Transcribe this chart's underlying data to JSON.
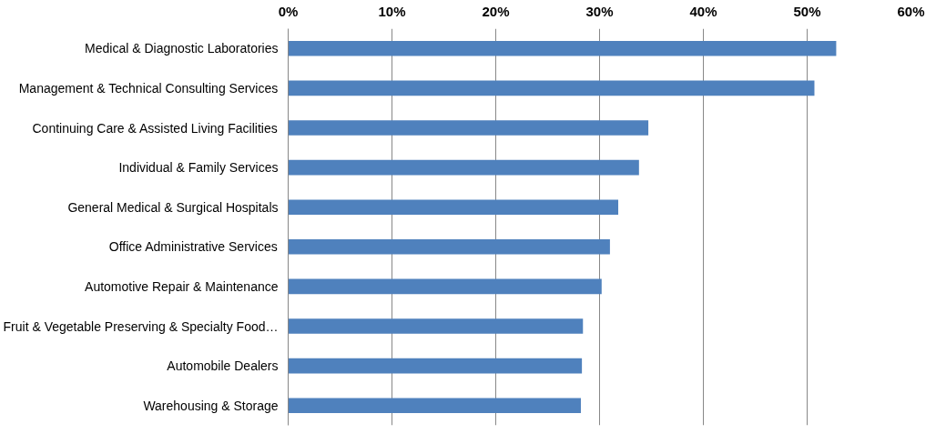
{
  "chart_data": {
    "type": "bar",
    "orientation": "horizontal",
    "categories": [
      "Medical & Diagnostic Laboratories",
      "Management & Technical Consulting Services",
      "Continuing Care & Assisted Living Facilities",
      "Individual & Family Services",
      "General Medical & Surgical Hospitals",
      "Office Administrative Services",
      "Automotive Repair & Maintenance",
      "Fruit & Vegetable Preserving & Specialty Food…",
      "Automobile Dealers",
      "Warehousing & Storage"
    ],
    "values": [
      52.8,
      50.7,
      34.7,
      33.8,
      31.8,
      31.0,
      30.2,
      28.4,
      28.3,
      28.2
    ],
    "color": "#4f81bd",
    "xlim": [
      0,
      60
    ],
    "xticks": [
      {
        "value": 0,
        "label": "0%"
      },
      {
        "value": 10,
        "label": "10%"
      },
      {
        "value": 20,
        "label": "20%"
      },
      {
        "value": 30,
        "label": "30%"
      },
      {
        "value": 40,
        "label": "40%"
      },
      {
        "value": 50,
        "label": "50%"
      },
      {
        "value": 60,
        "label": "60%"
      }
    ],
    "grid": "x"
  }
}
